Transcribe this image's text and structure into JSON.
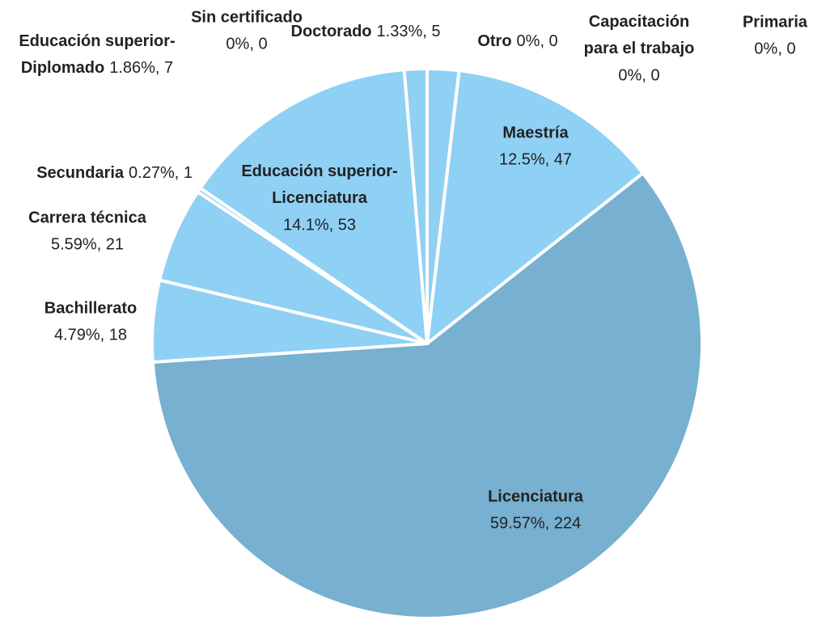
{
  "chart_data": {
    "type": "pie",
    "categories": [
      "Educación superior-Diplomado",
      "Otro",
      "Capacitación para el trabajo",
      "Primaria",
      "Maestría",
      "Licenciatura",
      "Bachillerato",
      "Carrera técnica",
      "Secundaria",
      "Educación superior-Licenciatura",
      "Doctorado",
      "Sin certificado"
    ],
    "values": [
      1.86,
      0,
      0,
      0,
      12.5,
      59.57,
      4.79,
      5.59,
      0.27,
      14.1,
      1.33,
      0
    ],
    "value_labels": [
      "1.86%, 7",
      "0%, 0",
      "0%, 0",
      "0%, 0",
      "12.5%, 47",
      "59.57%, 224",
      "4.79%, 18",
      "5.59%, 21",
      "0.27%, 1",
      "14.1%, 53",
      "1.33%, 5",
      "0%, 0"
    ],
    "colors": [
      "#8fd0f5",
      "#8fd0f5",
      "#8fd0f5",
      "#8fd0f5",
      "#8fd0f5",
      "#77b0d0",
      "#8fd0f5",
      "#8fd0f5",
      "#8fd0f5",
      "#8fd0f5",
      "#8fd0f5",
      "#8fd0f5"
    ]
  }
}
